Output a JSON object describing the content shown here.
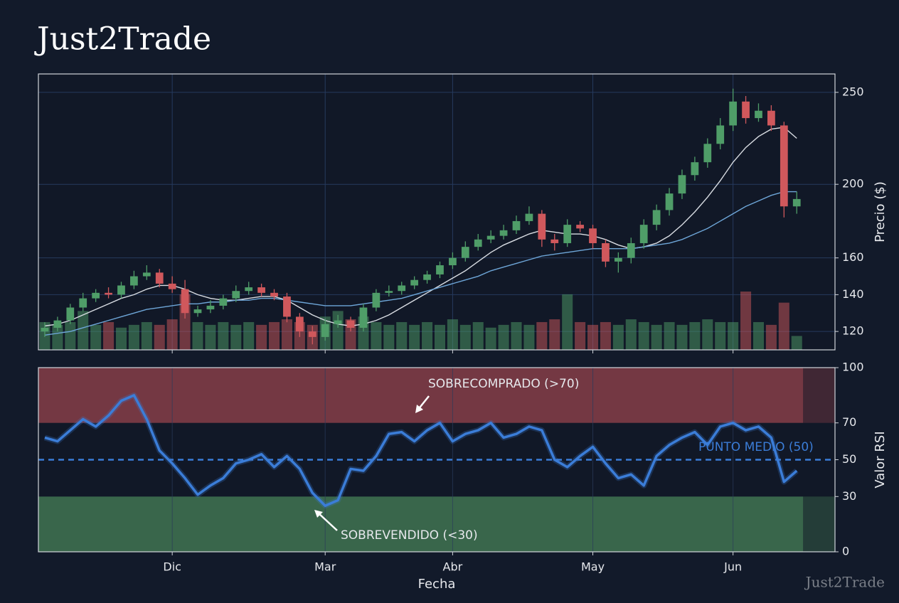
{
  "watermark": "Just2Trade",
  "chart_data": [
    {
      "type": "candlestick",
      "title": "Just2Trade",
      "ylabel": "Precio ($)",
      "open": [
        120,
        122,
        126,
        133,
        138,
        141,
        140,
        145,
        150,
        152,
        146,
        143,
        130,
        132,
        134,
        138,
        142,
        144,
        141,
        139,
        128,
        120,
        117,
        124,
        126,
        122,
        133,
        141,
        142,
        145,
        148,
        151,
        156,
        160,
        166,
        170,
        172,
        175,
        180,
        184,
        170,
        168,
        178,
        176,
        168,
        158,
        160,
        168,
        178,
        186,
        195,
        205,
        212,
        222,
        232,
        245,
        236,
        240,
        232,
        188
      ],
      "high": [
        125,
        128,
        135,
        141,
        143,
        144,
        147,
        153,
        156,
        154,
        150,
        148,
        134,
        137,
        140,
        145,
        147,
        146,
        143,
        141,
        130,
        123,
        127,
        129,
        128,
        135,
        143,
        145,
        147,
        150,
        153,
        158,
        163,
        169,
        173,
        175,
        178,
        183,
        188,
        186,
        173,
        181,
        180,
        178,
        170,
        163,
        171,
        181,
        189,
        198,
        208,
        215,
        225,
        236,
        252,
        248,
        244,
        243,
        234,
        196
      ],
      "low": [
        117,
        120,
        124,
        131,
        136,
        138,
        138,
        143,
        148,
        144,
        141,
        127,
        128,
        130,
        132,
        136,
        140,
        139,
        137,
        125,
        117,
        113,
        115,
        122,
        120,
        120,
        131,
        139,
        140,
        143,
        146,
        149,
        154,
        158,
        164,
        168,
        170,
        173,
        178,
        166,
        164,
        166,
        174,
        165,
        155,
        152,
        157,
        165,
        175,
        183,
        192,
        202,
        209,
        219,
        229,
        233,
        234,
        229,
        182,
        184
      ],
      "close": [
        122,
        126,
        133,
        138,
        141,
        140,
        145,
        150,
        152,
        146,
        143,
        130,
        132,
        134,
        138,
        142,
        144,
        141,
        139,
        128,
        120,
        117,
        124,
        126,
        122,
        133,
        141,
        142,
        145,
        148,
        151,
        156,
        160,
        166,
        170,
        172,
        175,
        180,
        184,
        170,
        168,
        178,
        176,
        168,
        158,
        160,
        168,
        178,
        186,
        195,
        205,
        212,
        222,
        232,
        245,
        236,
        240,
        232,
        188,
        192
      ],
      "volume": [
        10,
        9,
        10,
        14,
        9,
        10,
        8,
        9,
        10,
        9,
        11,
        20,
        10,
        9,
        10,
        9,
        10,
        9,
        10,
        11,
        10,
        9,
        12,
        14,
        11,
        12,
        10,
        9,
        10,
        9,
        10,
        9,
        11,
        9,
        10,
        8,
        9,
        10,
        9,
        10,
        11,
        20,
        10,
        9,
        10,
        9,
        11,
        10,
        9,
        10,
        9,
        10,
        11,
        10,
        10,
        21,
        10,
        9,
        17,
        5
      ],
      "moving_averages": [
        {
          "color": "#d9dde3",
          "values": [
            123,
            124,
            126,
            129,
            132,
            135,
            138,
            140,
            143,
            145,
            145,
            143,
            140,
            138,
            137,
            137,
            138,
            139,
            139,
            137,
            133,
            129,
            126,
            124,
            123,
            124,
            126,
            129,
            133,
            137,
            141,
            145,
            149,
            153,
            158,
            163,
            167,
            170,
            173,
            175,
            174,
            173,
            173,
            172,
            170,
            167,
            165,
            166,
            168,
            172,
            178,
            185,
            193,
            202,
            212,
            220,
            226,
            230,
            231,
            225
          ]
        },
        {
          "color": "#6ea6d8",
          "values": [
            118,
            119,
            120,
            122,
            124,
            126,
            128,
            130,
            132,
            133,
            134,
            135,
            135,
            136,
            136,
            137,
            137,
            138,
            138,
            137,
            136,
            135,
            134,
            134,
            134,
            135,
            136,
            137,
            138,
            140,
            142,
            144,
            146,
            148,
            150,
            153,
            155,
            157,
            159,
            161,
            162,
            163,
            164,
            165,
            165,
            165,
            165,
            166,
            167,
            168,
            170,
            173,
            176,
            180,
            184,
            188,
            191,
            194,
            196,
            196
          ]
        }
      ],
      "up_color": "#4f9d68",
      "down_color": "#d0585c",
      "ylim": [
        110,
        260
      ],
      "yticks": [
        120,
        140,
        160,
        200,
        250
      ],
      "grid": true
    },
    {
      "type": "line",
      "xlabel": "Fecha",
      "ylabel": "Valor RSI",
      "categories": [
        null,
        null,
        null,
        null,
        null,
        null,
        null,
        null,
        null,
        null,
        "Dic",
        null,
        null,
        null,
        null,
        null,
        null,
        null,
        null,
        null,
        null,
        null,
        "Mar",
        null,
        null,
        null,
        null,
        null,
        null,
        null,
        null,
        null,
        "Abr",
        null,
        null,
        null,
        null,
        null,
        null,
        null,
        null,
        null,
        null,
        "May",
        null,
        null,
        null,
        null,
        null,
        null,
        null,
        null,
        null,
        null,
        "Jun",
        null,
        null,
        null,
        null,
        null
      ],
      "values": [
        62,
        60,
        66,
        72,
        68,
        74,
        82,
        85,
        72,
        55,
        48,
        40,
        31,
        36,
        40,
        48,
        50,
        53,
        46,
        52,
        45,
        32,
        25,
        28,
        45,
        44,
        52,
        64,
        65,
        60,
        66,
        70,
        60,
        64,
        66,
        70,
        62,
        64,
        68,
        66,
        50,
        46,
        52,
        57,
        48,
        40,
        42,
        36,
        52,
        58,
        62,
        65,
        58,
        68,
        70,
        66,
        68,
        62,
        38,
        44
      ],
      "color": "#3b7dd8",
      "zones": [
        {
          "from": 70,
          "to": 100,
          "color": "#7a3a45"
        },
        {
          "from": 0,
          "to": 30,
          "color": "#3c6a4d"
        }
      ],
      "midline": 50,
      "annotations": [
        "SOBRECOMPRADO (>70)",
        "SOBREVENDIDO (<30)",
        "PUNTO MEDIO (50)"
      ],
      "ylim": [
        0,
        100
      ],
      "yticks": [
        0,
        30,
        50,
        70,
        100
      ]
    }
  ]
}
